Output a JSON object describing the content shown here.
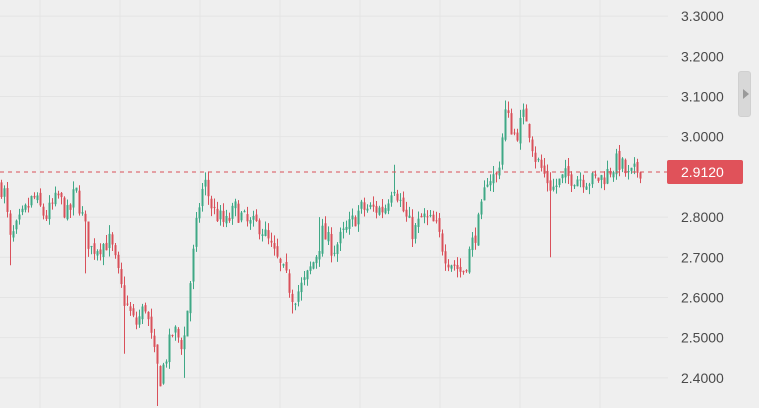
{
  "chart_data": {
    "type": "candlestick",
    "y_axis": {
      "side": "right",
      "ylim": [
        2.325,
        3.34
      ],
      "ticks": [
        {
          "value": 3.3,
          "label": "3.3000"
        },
        {
          "value": 3.2,
          "label": "3.2000"
        },
        {
          "value": 3.1,
          "label": "3.1000"
        },
        {
          "value": 3.0,
          "label": "3.0000"
        },
        {
          "value": 2.8,
          "label": "2.8000"
        },
        {
          "value": 2.7,
          "label": "2.7000"
        },
        {
          "value": 2.6,
          "label": "2.6000"
        },
        {
          "value": 2.5,
          "label": "2.5000"
        },
        {
          "value": 2.4,
          "label": "2.4000"
        }
      ]
    },
    "current_price": {
      "value": 2.912,
      "label": "2.9120"
    },
    "grid": true,
    "colors": {
      "up": "#3fa886",
      "down": "#d9505a",
      "price_tag": "#e0525a",
      "price_line": "#d9505a",
      "grid": "#e4e4e4",
      "background": "#efefef"
    },
    "anchors": [
      [
        2.88,
        0
      ],
      [
        2.86,
        4
      ],
      [
        2.74,
        10
      ],
      [
        2.8,
        22
      ],
      [
        2.85,
        33
      ],
      [
        2.8,
        45
      ],
      [
        2.85,
        58
      ],
      [
        2.8,
        68
      ],
      [
        2.87,
        75
      ],
      [
        2.72,
        90
      ],
      [
        2.74,
        110
      ],
      [
        2.6,
        123
      ],
      [
        2.53,
        135
      ],
      [
        2.58,
        145
      ],
      [
        2.44,
        155
      ],
      [
        2.4,
        160
      ],
      [
        2.52,
        173
      ],
      [
        2.48,
        183
      ],
      [
        2.64,
        190
      ],
      [
        2.82,
        198
      ],
      [
        2.89,
        204
      ],
      [
        2.82,
        212
      ],
      [
        2.78,
        225
      ],
      [
        2.82,
        235
      ],
      [
        2.78,
        248
      ],
      [
        2.78,
        260
      ],
      [
        2.7,
        275
      ],
      [
        2.64,
        287
      ],
      [
        2.6,
        293
      ],
      [
        2.64,
        305
      ],
      [
        2.7,
        315
      ],
      [
        2.76,
        322
      ],
      [
        2.72,
        333
      ],
      [
        2.78,
        350
      ],
      [
        2.82,
        360
      ],
      [
        2.82,
        372
      ],
      [
        2.82,
        384
      ],
      [
        2.89,
        393
      ],
      [
        2.8,
        405
      ],
      [
        2.76,
        413
      ],
      [
        2.8,
        422
      ],
      [
        2.78,
        435
      ],
      [
        2.7,
        446
      ],
      [
        2.68,
        455
      ],
      [
        2.66,
        462
      ],
      [
        2.72,
        470
      ],
      [
        2.8,
        480
      ],
      [
        2.9,
        487
      ],
      [
        2.9,
        497
      ],
      [
        3.06,
        505
      ],
      [
        3.0,
        515
      ],
      [
        3.06,
        525
      ],
      [
        2.95,
        535
      ],
      [
        2.9,
        545
      ],
      [
        2.87,
        552
      ],
      [
        2.9,
        565
      ],
      [
        2.9,
        578
      ],
      [
        2.89,
        592
      ],
      [
        2.9,
        603
      ],
      [
        2.94,
        618
      ],
      [
        2.9,
        628
      ],
      [
        2.92,
        640
      ]
    ],
    "spikes": [
      {
        "x": 10,
        "low": 2.68
      },
      {
        "x": 86,
        "low": 2.66
      },
      {
        "x": 125,
        "low": 2.46
      },
      {
        "x": 158,
        "low": 2.33
      },
      {
        "x": 184,
        "low": 2.4
      },
      {
        "x": 205,
        "high": 2.91
      },
      {
        "x": 291,
        "low": 2.56
      },
      {
        "x": 319,
        "high": 2.8
      },
      {
        "x": 393,
        "high": 2.93
      },
      {
        "x": 460,
        "low": 2.65
      },
      {
        "x": 506,
        "high": 3.09
      },
      {
        "x": 527,
        "high": 3.08
      },
      {
        "x": 551,
        "low": 2.7
      },
      {
        "x": 553,
        "high": 2.88
      }
    ]
  }
}
